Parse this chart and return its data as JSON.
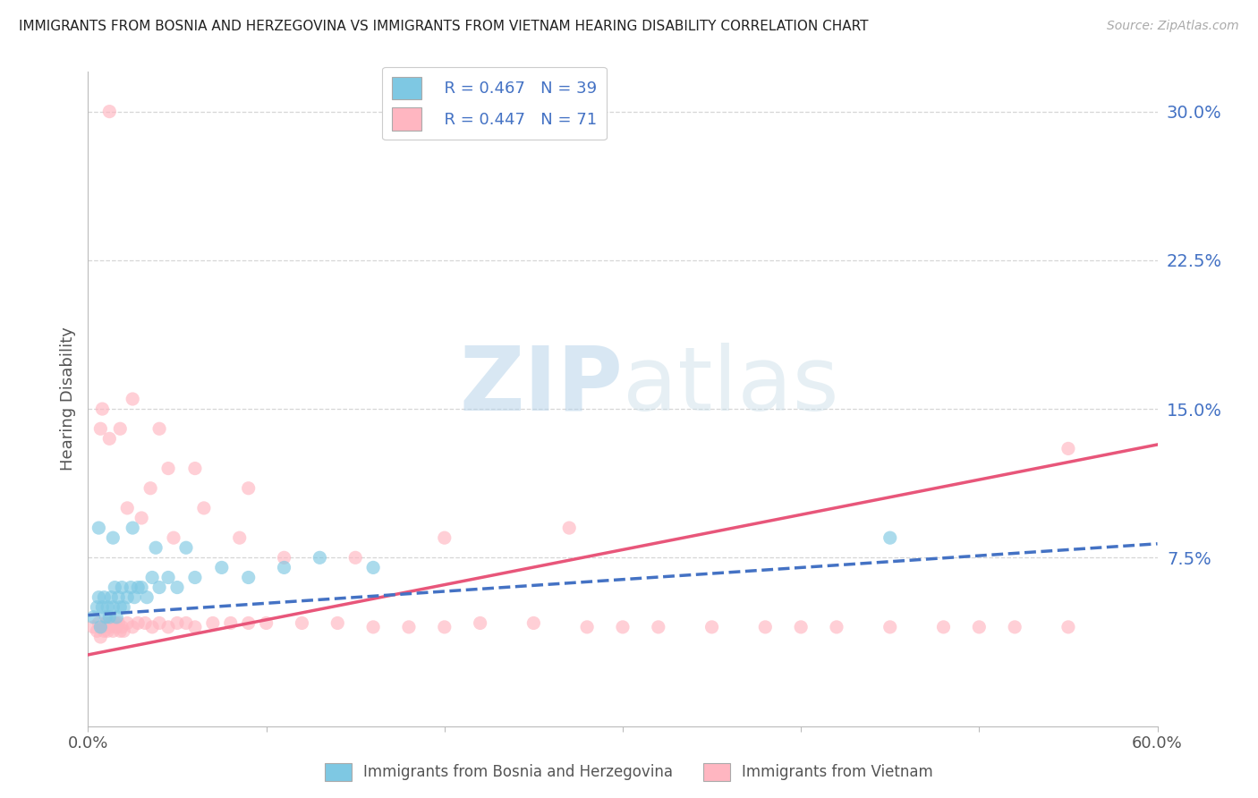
{
  "title": "IMMIGRANTS FROM BOSNIA AND HERZEGOVINA VS IMMIGRANTS FROM VIETNAM HEARING DISABILITY CORRELATION CHART",
  "source": "Source: ZipAtlas.com",
  "ylabel": "Hearing Disability",
  "xlim": [
    0.0,
    0.6
  ],
  "ylim": [
    -0.01,
    0.32
  ],
  "yticks": [
    0.0,
    0.075,
    0.15,
    0.225,
    0.3
  ],
  "ytick_labels": [
    "",
    "7.5%",
    "15.0%",
    "22.5%",
    "30.0%"
  ],
  "xticks": [
    0.0,
    0.1,
    0.2,
    0.3,
    0.4,
    0.5,
    0.6
  ],
  "xtick_labels": [
    "0.0%",
    "",
    "",
    "",
    "",
    "",
    "60.0%"
  ],
  "legend_r1": "R = 0.467",
  "legend_n1": "N = 39",
  "legend_r2": "R = 0.447",
  "legend_n2": "N = 71",
  "color_bosnia": "#7ec8e3",
  "color_vietnam": "#ffb6c1",
  "color_bosnia_line": "#4472c4",
  "color_vietnam_line": "#e8567a",
  "background_color": "#ffffff",
  "watermark_zip": "ZIP",
  "watermark_atlas": "atlas",
  "grid_color": "#cccccc",
  "bosnia_scatter_x": [
    0.003,
    0.005,
    0.006,
    0.007,
    0.008,
    0.009,
    0.01,
    0.011,
    0.012,
    0.013,
    0.014,
    0.015,
    0.016,
    0.017,
    0.018,
    0.019,
    0.02,
    0.022,
    0.024,
    0.026,
    0.028,
    0.03,
    0.033,
    0.036,
    0.04,
    0.045,
    0.05,
    0.06,
    0.075,
    0.09,
    0.11,
    0.13,
    0.16,
    0.006,
    0.014,
    0.025,
    0.038,
    0.055,
    0.45
  ],
  "bosnia_scatter_y": [
    0.045,
    0.05,
    0.055,
    0.04,
    0.05,
    0.055,
    0.045,
    0.05,
    0.045,
    0.055,
    0.05,
    0.06,
    0.045,
    0.055,
    0.05,
    0.06,
    0.05,
    0.055,
    0.06,
    0.055,
    0.06,
    0.06,
    0.055,
    0.065,
    0.06,
    0.065,
    0.06,
    0.065,
    0.07,
    0.065,
    0.07,
    0.075,
    0.07,
    0.09,
    0.085,
    0.09,
    0.08,
    0.08,
    0.085
  ],
  "vietnam_scatter_x": [
    0.003,
    0.005,
    0.006,
    0.007,
    0.008,
    0.009,
    0.01,
    0.011,
    0.012,
    0.013,
    0.014,
    0.015,
    0.016,
    0.017,
    0.018,
    0.019,
    0.02,
    0.022,
    0.025,
    0.028,
    0.032,
    0.036,
    0.04,
    0.045,
    0.05,
    0.055,
    0.06,
    0.07,
    0.08,
    0.09,
    0.1,
    0.12,
    0.14,
    0.16,
    0.18,
    0.2,
    0.22,
    0.25,
    0.28,
    0.3,
    0.32,
    0.35,
    0.38,
    0.4,
    0.42,
    0.45,
    0.48,
    0.5,
    0.52,
    0.55,
    0.007,
    0.012,
    0.022,
    0.035,
    0.048,
    0.008,
    0.018,
    0.03,
    0.045,
    0.065,
    0.085,
    0.11,
    0.15,
    0.2,
    0.27,
    0.012,
    0.025,
    0.04,
    0.06,
    0.09,
    0.55
  ],
  "vietnam_scatter_y": [
    0.04,
    0.038,
    0.042,
    0.035,
    0.04,
    0.038,
    0.042,
    0.038,
    0.04,
    0.042,
    0.038,
    0.042,
    0.04,
    0.042,
    0.038,
    0.04,
    0.038,
    0.042,
    0.04,
    0.042,
    0.042,
    0.04,
    0.042,
    0.04,
    0.042,
    0.042,
    0.04,
    0.042,
    0.042,
    0.042,
    0.042,
    0.042,
    0.042,
    0.04,
    0.04,
    0.04,
    0.042,
    0.042,
    0.04,
    0.04,
    0.04,
    0.04,
    0.04,
    0.04,
    0.04,
    0.04,
    0.04,
    0.04,
    0.04,
    0.04,
    0.14,
    0.135,
    0.1,
    0.11,
    0.085,
    0.15,
    0.14,
    0.095,
    0.12,
    0.1,
    0.085,
    0.075,
    0.075,
    0.085,
    0.09,
    0.3,
    0.155,
    0.14,
    0.12,
    0.11,
    0.13
  ],
  "bosnia_line_x": [
    0.0,
    0.6
  ],
  "bosnia_line_y": [
    0.046,
    0.082
  ],
  "vietnam_line_x": [
    0.0,
    0.6
  ],
  "vietnam_line_y": [
    0.026,
    0.132
  ]
}
